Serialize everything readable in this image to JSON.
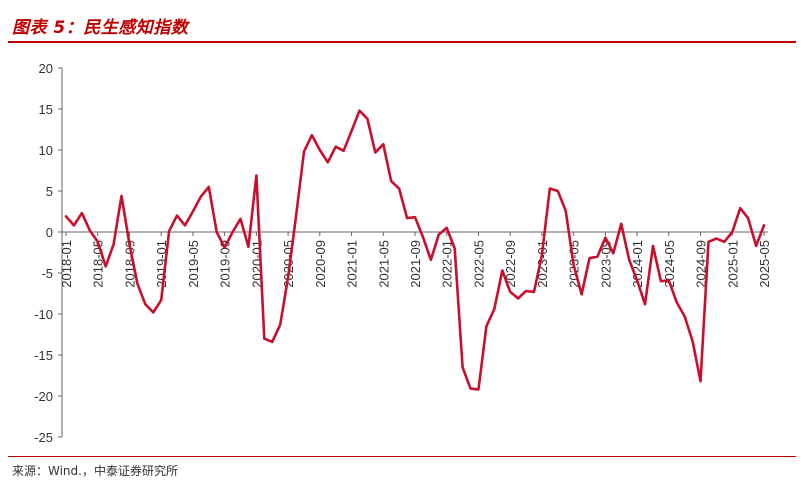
{
  "header": {
    "title": "图表 5：民生感知指数"
  },
  "footer": {
    "source": "来源：Wind.，中泰证券研究所"
  },
  "colors": {
    "accent": "#c00000",
    "series": "#c8102e",
    "axis": "#666666"
  },
  "chart_data": {
    "type": "line",
    "title": "",
    "xlabel": "",
    "ylabel": "",
    "ylim": [
      -25,
      20
    ],
    "yticks": [
      20,
      15,
      10,
      5,
      0,
      -5,
      -10,
      -15,
      -20,
      -25
    ],
    "grid": false,
    "legend": "none",
    "x_tick_labels": [
      "2018-01",
      "2018-05",
      "2018-09",
      "2019-01",
      "2019-05",
      "2019-09",
      "2020-01",
      "2020-05",
      "2020-09",
      "2021-01",
      "2021-05",
      "2021-09",
      "2022-01",
      "2022-05",
      "2022-09",
      "2023-01",
      "2023-05",
      "2023-09",
      "2024-01",
      "2024-05",
      "2024-09",
      "2025-01",
      "2025-05"
    ],
    "x": [
      "2018-01",
      "2018-02",
      "2018-03",
      "2018-04",
      "2018-05",
      "2018-06",
      "2018-07",
      "2018-08",
      "2018-09",
      "2018-10",
      "2018-11",
      "2018-12",
      "2019-01",
      "2019-02",
      "2019-03",
      "2019-04",
      "2019-05",
      "2019-06",
      "2019-07",
      "2019-08",
      "2019-09",
      "2019-10",
      "2019-11",
      "2019-12",
      "2020-01",
      "2020-02",
      "2020-03",
      "2020-04",
      "2020-05",
      "2020-06",
      "2020-07",
      "2020-08",
      "2020-09",
      "2020-10",
      "2020-11",
      "2020-12",
      "2021-01",
      "2021-02",
      "2021-03",
      "2021-04",
      "2021-05",
      "2021-06",
      "2021-07",
      "2021-08",
      "2021-09",
      "2021-10",
      "2021-11",
      "2021-12",
      "2022-01",
      "2022-02",
      "2022-03",
      "2022-04",
      "2022-05",
      "2022-06",
      "2022-07",
      "2022-08",
      "2022-09",
      "2022-10",
      "2022-11",
      "2022-12",
      "2023-01",
      "2023-02",
      "2023-03",
      "2023-04",
      "2023-05",
      "2023-06",
      "2023-07",
      "2023-08",
      "2023-09",
      "2023-10",
      "2023-11",
      "2023-12",
      "2024-01",
      "2024-02",
      "2024-03",
      "2024-04",
      "2024-05",
      "2024-06",
      "2024-07",
      "2024-08",
      "2024-09",
      "2024-10",
      "2024-11",
      "2024-12",
      "2025-01",
      "2025-02",
      "2025-03",
      "2025-04",
      "2025-05"
    ],
    "series": [
      {
        "values": [
          1.9,
          0.8,
          2.3,
          0.2,
          -1.2,
          -4.2,
          -1.5,
          4.4,
          -1.5,
          -6.3,
          -8.8,
          -9.8,
          -8.3,
          0.1,
          2.0,
          0.8,
          2.5,
          4.3,
          5.5,
          0.0,
          -1.9,
          0.0,
          1.6,
          -1.8,
          6.9,
          -13.0,
          -13.4,
          -11.3,
          -5.5,
          1.9,
          9.8,
          11.8,
          10.0,
          8.5,
          10.4,
          9.9,
          12.3,
          14.8,
          13.8,
          9.7,
          10.7,
          6.2,
          5.3,
          1.7,
          1.8,
          -0.6,
          -3.4,
          -0.3,
          0.5,
          -2.0,
          -16.5,
          -19.1,
          -19.2,
          -11.5,
          -9.4,
          -4.7,
          -7.3,
          -8.1,
          -7.2,
          -7.3,
          -2.8,
          5.3,
          5.0,
          2.6,
          -4.0,
          -7.6,
          -3.2,
          -3.0,
          -0.7,
          -2.6,
          1.0,
          -3.4,
          -5.9,
          -8.8,
          -1.7,
          -6.0,
          -5.9,
          -8.6,
          -10.3,
          -13.3,
          -18.2,
          -1.2,
          -0.8,
          -1.2,
          0.0,
          2.9,
          1.7,
          -1.7,
          0.8
        ]
      }
    ]
  }
}
